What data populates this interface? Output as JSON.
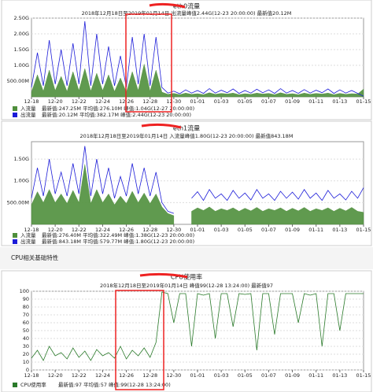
{
  "section_title": "CPU相关基础特性",
  "chart_data": [
    {
      "type": "line",
      "title": "eth0流量",
      "subtitle": "2018年12月18日至2019年01月14日  出流量峰值2.44G(12-23 20:00:00)  最新值20.12M",
      "categories": [
        "12-18",
        null,
        null,
        null,
        "12-20",
        null,
        null,
        null,
        "12-22",
        null,
        null,
        null,
        "12-24",
        null,
        null,
        null,
        "12-26",
        null,
        null,
        null,
        "12-28",
        null,
        null,
        null,
        "12-30",
        null,
        null,
        null,
        "01-01",
        null,
        null,
        null,
        "01-03",
        null,
        null,
        null,
        "01-05",
        null,
        null,
        null,
        "01-07",
        null,
        null,
        null,
        "01-09",
        null,
        null,
        null,
        "01-11",
        null,
        null,
        null,
        "01-13",
        null,
        null,
        null,
        "01-15"
      ],
      "ylim": [
        0,
        2500
      ],
      "yticks": [
        {
          "value": 500,
          "label": "500.00M"
        },
        {
          "value": 1000,
          "label": "1.00G"
        },
        {
          "value": 1500,
          "label": "1.50G"
        },
        {
          "value": 2000,
          "label": "2.00G"
        },
        {
          "value": 2500,
          "label": "2.50G"
        }
      ],
      "grid": true,
      "series": [
        {
          "name": "入流量",
          "stats": "最新值:247.25M  平均值:276.10M  峰值:1.04G(12-27 20:00:00)",
          "color": "#4f8f3c",
          "fill": true,
          "values": [
            150,
            700,
            180,
            850,
            200,
            650,
            170,
            800,
            200,
            900,
            180,
            750,
            200,
            700,
            170,
            600,
            150,
            800,
            200,
            1040,
            180,
            850,
            150,
            80,
            110,
            70,
            120,
            80,
            100,
            70,
            130,
            80,
            110,
            90,
            120,
            70,
            100,
            80,
            120,
            90,
            110,
            70,
            130,
            80,
            100,
            70,
            120,
            80,
            110,
            90,
            120,
            70,
            110,
            80,
            100,
            90,
            247
          ]
        },
        {
          "name": "出流量",
          "stats": "最新值:20.12M  平均值:382.17M  峰值:2.44G(12-23 20:00:00)",
          "color": "#1c1cd8",
          "fill": false,
          "values": [
            300,
            1400,
            350,
            1800,
            400,
            1500,
            350,
            1700,
            400,
            2400,
            350,
            2000,
            400,
            1600,
            350,
            1300,
            300,
            1900,
            400,
            2000,
            350,
            1900,
            300,
            120,
            180,
            100,
            220,
            120,
            200,
            110,
            260,
            120,
            210,
            130,
            250,
            110,
            200,
            120,
            240,
            130,
            220,
            110,
            260,
            120,
            200,
            110,
            230,
            120,
            210,
            130,
            250,
            110,
            220,
            120,
            200,
            110,
            20
          ]
        }
      ]
    },
    {
      "type": "line",
      "title": "eth1流量",
      "subtitle": "2018年12月18日至2019年01月14日  入流量峰值1.80G(12-23 20:00:00)  最新值843.18M",
      "categories": [
        "12-18",
        null,
        null,
        null,
        "12-20",
        null,
        null,
        null,
        "12-22",
        null,
        null,
        null,
        "12-24",
        null,
        null,
        null,
        "12-26",
        null,
        null,
        null,
        "12-28",
        null,
        null,
        null,
        "12-30",
        null,
        null,
        null,
        "01-01",
        null,
        null,
        null,
        "01-03",
        null,
        null,
        null,
        "01-05",
        null,
        null,
        null,
        "01-07",
        null,
        null,
        null,
        "01-09",
        null,
        null,
        null,
        "01-11",
        null,
        null,
        null,
        "01-13",
        null,
        null,
        null,
        "01-15"
      ],
      "ylim": [
        0,
        1900
      ],
      "yticks": [
        {
          "value": 500,
          "label": "500.00M"
        },
        {
          "value": 1000,
          "label": "1.00G"
        },
        {
          "value": 1500,
          "label": "1.50G"
        }
      ],
      "grid": true,
      "series": [
        {
          "name": "入流量",
          "stats": "最新值:276.40M  平均值:322.49M  峰值:1.38G(12-23 20:00:00)",
          "color": "#4f8f3c",
          "fill": true,
          "values": [
            450,
            750,
            500,
            800,
            500,
            700,
            480,
            780,
            500,
            1380,
            480,
            800,
            500,
            700,
            450,
            650,
            480,
            760,
            500,
            720,
            480,
            700,
            400,
            250,
            200,
            null,
            null,
            300,
            380,
            320,
            400,
            300,
            360,
            320,
            380,
            300,
            370,
            310,
            390,
            300,
            360,
            320,
            380,
            300,
            370,
            310,
            390,
            300,
            360,
            320,
            380,
            300,
            370,
            310,
            390,
            300,
            276
          ]
        },
        {
          "name": "出流量",
          "stats": "最新值:843.18M  平均值:579.77M  峰值:1.80G(12-23 20:00:00)",
          "color": "#1c1cd8",
          "fill": false,
          "values": [
            600,
            1300,
            650,
            1500,
            700,
            1200,
            650,
            1400,
            700,
            1800,
            650,
            1500,
            700,
            1300,
            600,
            1100,
            650,
            1400,
            700,
            1300,
            650,
            1200,
            500,
            300,
            250,
            null,
            null,
            600,
            750,
            550,
            800,
            600,
            700,
            550,
            780,
            600,
            720,
            560,
            800,
            600,
            700,
            550,
            760,
            600,
            740,
            580,
            800,
            600,
            720,
            550,
            780,
            600,
            700,
            560,
            760,
            600,
            843
          ]
        }
      ]
    },
    {
      "type": "line",
      "title": "CPU使用率",
      "subtitle": "2018年12月18日至2019年01月14日  峰值99(12-28 13:24:00)  最新值97",
      "categories": [
        "12-18",
        null,
        null,
        null,
        "12-20",
        null,
        null,
        null,
        "12-22",
        null,
        null,
        null,
        "12-24",
        null,
        null,
        null,
        "12-26",
        null,
        null,
        null,
        "12-28",
        null,
        null,
        null,
        "12-30",
        null,
        null,
        null,
        "01-01",
        null,
        null,
        null,
        "01-03",
        null,
        null,
        null,
        "01-05",
        null,
        null,
        null,
        "01-07",
        null,
        null,
        null,
        "01-09",
        null,
        null,
        null,
        "01-11",
        null,
        null,
        null,
        "01-13",
        null,
        null,
        null,
        "01-15"
      ],
      "ylim": [
        0,
        100
      ],
      "yticks": [
        0,
        10,
        20,
        30,
        40,
        50,
        60,
        70,
        80,
        90,
        100
      ],
      "grid": true,
      "series": [
        {
          "name": "CPU使用率",
          "stats": "最新值:97  平均值:57  峰值:99(12-28 13:24:00)",
          "color": "#2a7a2a",
          "fill": false,
          "values": [
            15,
            25,
            12,
            30,
            18,
            22,
            14,
            28,
            16,
            24,
            12,
            26,
            18,
            22,
            15,
            30,
            14,
            25,
            18,
            28,
            16,
            35,
            99,
            97,
            60,
            97,
            97,
            30,
            97,
            95,
            97,
            40,
            97,
            97,
            55,
            97,
            96,
            97,
            25,
            97,
            97,
            45,
            97,
            97,
            97,
            60,
            97,
            95,
            97,
            30,
            97,
            97,
            50,
            97,
            97,
            97,
            97
          ]
        }
      ]
    }
  ]
}
